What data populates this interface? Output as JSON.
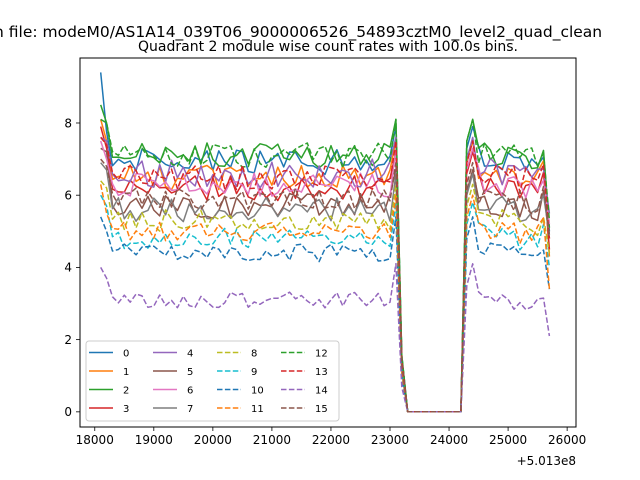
{
  "figure": {
    "suptitle": "n file: modeM0/AS1A14_039T06_9000006526_54893cztM0_level2_quad_clean",
    "title": "Quadrant 2 module wise count rates with 100.0s bins.",
    "offset_text": "+5.013e8"
  },
  "chart_data": {
    "type": "line",
    "title": "Quadrant 2 module wise count rates with 100.0s bins.",
    "xlabel": "",
    "ylabel": "",
    "x_offset": 501300000,
    "xlim": [
      17750,
      26150
    ],
    "ylim": [
      -0.42,
      9.8
    ],
    "xticks": [
      18000,
      19000,
      20000,
      21000,
      22000,
      23000,
      24000,
      25000,
      26000
    ],
    "yticks": [
      0,
      2,
      4,
      6,
      8
    ],
    "grid": false,
    "legend": {
      "position": "lower-left",
      "columns": 4
    },
    "x_segments": [
      {
        "start": 18100,
        "end": 23100,
        "step": 100
      },
      {
        "start": 23200,
        "end": 24200,
        "step": 100
      },
      {
        "start": 24300,
        "end": 25700,
        "step": 100
      }
    ],
    "series": [
      {
        "name": "0",
        "color": "#1f77b4",
        "dash": "solid",
        "level": 6.9,
        "start": 9.4,
        "p2": 7.75,
        "end": 5.0,
        "amp": 0.38
      },
      {
        "name": "1",
        "color": "#ff7f0e",
        "dash": "solid",
        "level": 6.5,
        "start": 8.1,
        "p2": 7.5,
        "end": 4.3,
        "amp": 0.35
      },
      {
        "name": "2",
        "color": "#2ca02c",
        "dash": "solid",
        "level": 7.1,
        "start": 8.5,
        "p2": 8.0,
        "end": 5.1,
        "amp": 0.35
      },
      {
        "name": "3",
        "color": "#d62728",
        "dash": "solid",
        "level": 6.2,
        "start": 7.9,
        "p2": 7.3,
        "end": 4.5,
        "amp": 0.35
      },
      {
        "name": "4",
        "color": "#9467bd",
        "dash": "solid",
        "level": 6.6,
        "start": 7.6,
        "p2": 7.5,
        "end": 5.5,
        "amp": 0.4
      },
      {
        "name": "5",
        "color": "#8c564b",
        "dash": "solid",
        "level": 5.7,
        "start": 7.3,
        "p2": 7.2,
        "end": 4.8,
        "amp": 0.35
      },
      {
        "name": "6",
        "color": "#e377c2",
        "dash": "solid",
        "level": 6.3,
        "start": 7.5,
        "p2": 7.0,
        "end": 5.2,
        "amp": 0.35
      },
      {
        "name": "7",
        "color": "#7f7f7f",
        "dash": "solid",
        "level": 5.6,
        "start": 6.9,
        "p2": 6.7,
        "end": 4.9,
        "amp": 0.35
      },
      {
        "name": "8",
        "color": "#bcbd22",
        "dash": "dashed",
        "level": 5.3,
        "start": 6.4,
        "p2": 6.2,
        "end": 4.4,
        "amp": 0.3
      },
      {
        "name": "9",
        "color": "#17becf",
        "dash": "dashed",
        "level": 4.8,
        "start": 6.0,
        "p2": 5.7,
        "end": 4.0,
        "amp": 0.3
      },
      {
        "name": "10",
        "color": "#1f77b4",
        "dash": "dashed",
        "level": 4.4,
        "start": 5.4,
        "p2": 5.0,
        "end": 3.4,
        "amp": 0.25
      },
      {
        "name": "11",
        "color": "#ff7f0e",
        "dash": "dashed",
        "level": 5.0,
        "start": 6.3,
        "p2": 5.5,
        "end": 3.4,
        "amp": 0.3
      },
      {
        "name": "12",
        "color": "#2ca02c",
        "dash": "dashed",
        "level": 7.1,
        "start": 8.1,
        "p2": 8.0,
        "end": 5.3,
        "amp": 0.35
      },
      {
        "name": "13",
        "color": "#d62728",
        "dash": "dashed",
        "level": 6.5,
        "start": 7.6,
        "p2": 7.4,
        "end": 4.8,
        "amp": 0.35
      },
      {
        "name": "14",
        "color": "#9467bd",
        "dash": "dashed",
        "level": 3.1,
        "start": 4.0,
        "p2": 3.7,
        "end": 2.1,
        "amp": 0.22
      },
      {
        "name": "15",
        "color": "#8c564b",
        "dash": "dashed",
        "level": 5.9,
        "start": 7.0,
        "p2": 6.8,
        "end": 4.9,
        "amp": 0.3
      }
    ]
  }
}
